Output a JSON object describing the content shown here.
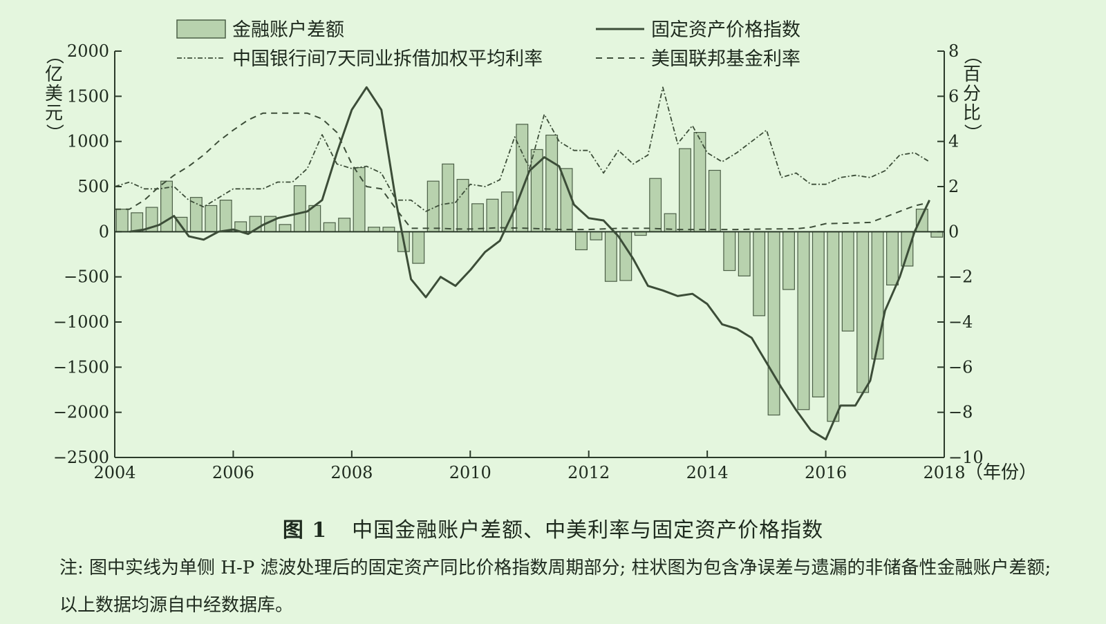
{
  "figure": {
    "number": "图 1",
    "title": "中国金融账户差额、中美利率与固定资产价格指数",
    "note": "注: 图中实线为单侧 H-P 滤波处理后的固定资产同比价格指数周期部分; 柱状图为包含净误差与遗漏的非储备性金融账户差额; 以上数据均源自中经数据库。"
  },
  "colors": {
    "background": "#e4f6de",
    "bar_fill": "#b8d2ae",
    "bar_stroke": "#4b5e46",
    "line": "#3c4d38",
    "axis": "#2b3a2a"
  },
  "chart_data": {
    "type": "bar+line",
    "title": "",
    "xlabel": "（年份）",
    "ylabel_left": "（亿美元）",
    "ylabel_right": "（百分比）",
    "x_range": [
      2004,
      2018
    ],
    "x_ticks": [
      2004,
      2006,
      2008,
      2010,
      2012,
      2014,
      2016,
      2018
    ],
    "ylim_left": [
      -2500,
      2000
    ],
    "y_ticks_left": [
      2000,
      1500,
      1000,
      500,
      0,
      -500,
      -1000,
      -1500,
      -2000,
      -2500
    ],
    "ylim_right": [
      -10,
      8
    ],
    "y_ticks_right": [
      8,
      6,
      4,
      2,
      0,
      -2,
      -4,
      -6,
      -8,
      -10
    ],
    "grid": false,
    "legend_placement": "top",
    "bars": {
      "name": "金融账户差额",
      "axis": "left",
      "x": [
        2004.0,
        2004.25,
        2004.5,
        2004.75,
        2005.0,
        2005.25,
        2005.5,
        2005.75,
        2006.0,
        2006.25,
        2006.5,
        2006.75,
        2007.0,
        2007.25,
        2007.5,
        2007.75,
        2008.0,
        2008.25,
        2008.5,
        2008.75,
        2009.0,
        2009.25,
        2009.5,
        2009.75,
        2010.0,
        2010.25,
        2010.5,
        2010.75,
        2011.0,
        2011.25,
        2011.5,
        2011.75,
        2012.0,
        2012.25,
        2012.5,
        2012.75,
        2013.0,
        2013.25,
        2013.5,
        2013.75,
        2014.0,
        2014.25,
        2014.5,
        2014.75,
        2015.0,
        2015.25,
        2015.5,
        2015.75,
        2016.0,
        2016.25,
        2016.5,
        2016.75,
        2017.0,
        2017.25,
        2017.5,
        2017.75
      ],
      "values": [
        250,
        210,
        270,
        560,
        160,
        380,
        290,
        350,
        110,
        170,
        170,
        80,
        510,
        290,
        100,
        150,
        710,
        50,
        50,
        -220,
        -350,
        560,
        750,
        580,
        310,
        360,
        440,
        1190,
        910,
        1070,
        700,
        -200,
        -90,
        -550,
        -540,
        -40,
        590,
        200,
        920,
        1100,
        680,
        -430,
        -490,
        -930,
        -2030,
        -640,
        -1970,
        -1830,
        -2100,
        -1100,
        -1780,
        -1410,
        -590,
        -380,
        250,
        -60
      ]
    },
    "series": [
      {
        "name": "固定资产价格指数",
        "axis": "right",
        "style": "solid",
        "x": [
          2004.25,
          2004.5,
          2004.75,
          2005.0,
          2005.25,
          2005.5,
          2005.75,
          2006.0,
          2006.25,
          2006.5,
          2006.75,
          2007.0,
          2007.25,
          2007.5,
          2007.75,
          2008.0,
          2008.25,
          2008.5,
          2008.75,
          2009.0,
          2009.25,
          2009.5,
          2009.75,
          2010.0,
          2010.25,
          2010.5,
          2010.75,
          2011.0,
          2011.25,
          2011.5,
          2011.75,
          2012.0,
          2012.25,
          2012.5,
          2012.75,
          2013.0,
          2013.25,
          2013.5,
          2013.75,
          2014.0,
          2014.25,
          2014.5,
          2014.75,
          2015.0,
          2015.25,
          2015.5,
          2015.75,
          2016.0,
          2016.25,
          2016.5,
          2016.75,
          2017.0,
          2017.25,
          2017.5,
          2017.75
        ],
        "values": [
          0.0,
          0.1,
          0.3,
          0.7,
          -0.2,
          -0.35,
          0.0,
          0.1,
          -0.1,
          0.3,
          0.6,
          0.75,
          0.9,
          1.4,
          3.5,
          5.4,
          6.4,
          5.4,
          1.3,
          -2.1,
          -2.9,
          -2.0,
          -2.4,
          -1.7,
          -0.9,
          -0.4,
          1.0,
          2.7,
          3.3,
          2.9,
          1.2,
          0.6,
          0.5,
          -0.2,
          -1.2,
          -2.4,
          -2.6,
          -2.85,
          -2.75,
          -3.2,
          -4.1,
          -4.3,
          -4.7,
          -5.8,
          -6.9,
          -7.9,
          -8.8,
          -9.2,
          -7.7,
          -7.7,
          -6.6,
          -3.5,
          -2.0,
          0.0,
          1.4
        ]
      },
      {
        "name": "中国银行间7天同业拆借加权平均利率",
        "axis": "right",
        "style": "dashdot",
        "x": [
          2004.0,
          2004.25,
          2004.5,
          2004.75,
          2005.0,
          2005.25,
          2005.5,
          2005.75,
          2006.0,
          2006.25,
          2006.5,
          2006.75,
          2007.0,
          2007.25,
          2007.5,
          2007.75,
          2008.0,
          2008.25,
          2008.5,
          2008.75,
          2009.0,
          2009.25,
          2009.5,
          2009.75,
          2010.0,
          2010.25,
          2010.5,
          2010.75,
          2011.0,
          2011.25,
          2011.5,
          2011.75,
          2012.0,
          2012.25,
          2012.5,
          2012.75,
          2013.0,
          2013.25,
          2013.5,
          2013.75,
          2014.0,
          2014.25,
          2014.5,
          2014.75,
          2015.0,
          2015.25,
          2015.5,
          2015.75,
          2016.0,
          2016.25,
          2016.5,
          2016.75,
          2017.0,
          2017.25,
          2017.5,
          2017.75
        ],
        "values": [
          2.0,
          2.2,
          1.9,
          1.9,
          2.0,
          1.4,
          1.1,
          1.5,
          1.9,
          1.9,
          1.9,
          2.2,
          2.2,
          2.8,
          4.3,
          3.0,
          2.8,
          2.9,
          2.6,
          1.4,
          1.4,
          0.9,
          1.2,
          1.3,
          2.1,
          2.0,
          2.3,
          4.2,
          2.8,
          5.2,
          4.0,
          3.6,
          3.6,
          2.6,
          3.6,
          3.0,
          3.4,
          6.4,
          3.9,
          4.7,
          3.5,
          3.1,
          3.5,
          4.0,
          4.5,
          2.4,
          2.6,
          2.1,
          2.1,
          2.4,
          2.5,
          2.4,
          2.7,
          3.4,
          3.5,
          3.1
        ]
      },
      {
        "name": "美国联邦基金利率",
        "axis": "right",
        "style": "dashed",
        "x": [
          2004.0,
          2004.25,
          2004.5,
          2004.75,
          2005.0,
          2005.25,
          2005.5,
          2005.75,
          2006.0,
          2006.25,
          2006.5,
          2006.75,
          2007.0,
          2007.25,
          2007.5,
          2007.75,
          2008.0,
          2008.25,
          2008.5,
          2008.75,
          2009.0,
          2009.25,
          2009.5,
          2009.75,
          2010.0,
          2010.5,
          2011.0,
          2011.5,
          2012.0,
          2012.5,
          2013.0,
          2013.5,
          2014.0,
          2014.5,
          2015.0,
          2015.5,
          2015.75,
          2016.0,
          2016.25,
          2016.5,
          2016.75,
          2017.0,
          2017.25,
          2017.5,
          2017.75
        ],
        "values": [
          1.0,
          1.0,
          1.4,
          2.0,
          2.5,
          2.9,
          3.4,
          4.0,
          4.5,
          4.95,
          5.25,
          5.25,
          5.25,
          5.25,
          5.0,
          4.4,
          3.0,
          2.0,
          1.9,
          1.0,
          0.15,
          0.15,
          0.15,
          0.12,
          0.12,
          0.18,
          0.15,
          0.1,
          0.1,
          0.15,
          0.15,
          0.1,
          0.1,
          0.1,
          0.12,
          0.13,
          0.2,
          0.36,
          0.37,
          0.39,
          0.41,
          0.65,
          0.9,
          1.15,
          1.3
        ]
      }
    ]
  }
}
